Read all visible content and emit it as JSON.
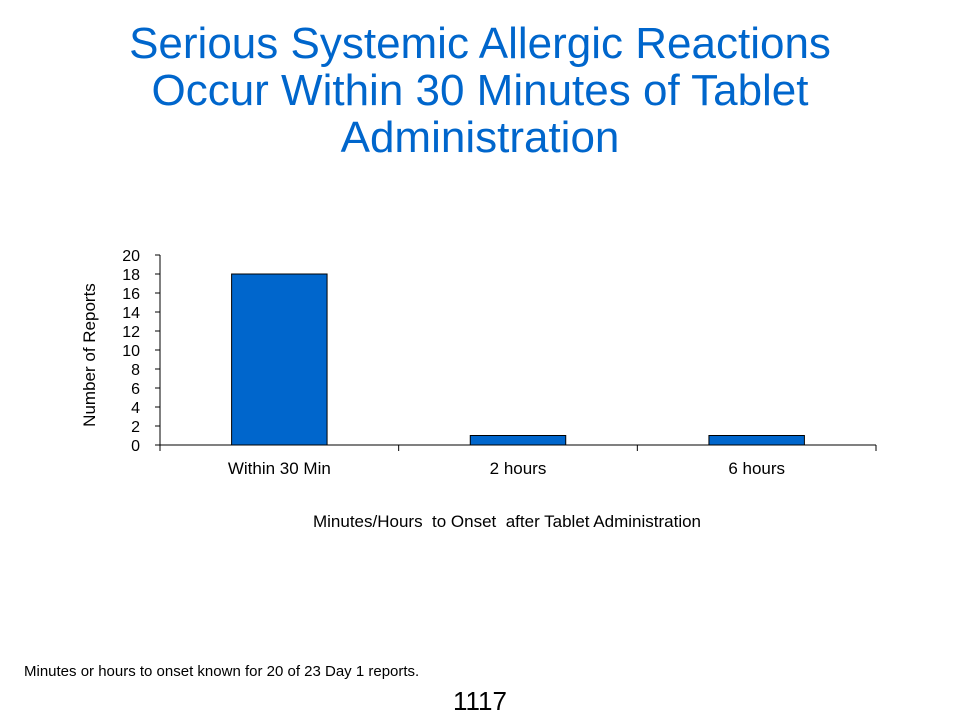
{
  "title_lines": [
    "Serious Systemic Allergic Reactions",
    "Occur Within 30 Minutes of Tablet",
    "Administration"
  ],
  "footnote": "Minutes or hours to onset known for 20 of 23 Day 1 reports.",
  "page_number": "1117",
  "colors": {
    "title": "#0066cc",
    "bar": "#0066cc",
    "bar_stroke": "#000000"
  },
  "chart_data": {
    "type": "bar",
    "title": "Serious Systemic Allergic Reactions Occur Within 30 Minutes of Tablet Administration",
    "categories": [
      "Within 30 Min",
      "2 hours",
      "6 hours"
    ],
    "values": [
      18,
      1,
      1
    ],
    "xlabel": "Minutes/Hours  to Onset  after Tablet Administration",
    "ylabel": "Number of Reports",
    "ylim": [
      0,
      20
    ],
    "yticks": [
      0,
      2,
      4,
      6,
      8,
      10,
      12,
      14,
      16,
      18,
      20
    ],
    "grid": false,
    "legend": "none"
  }
}
